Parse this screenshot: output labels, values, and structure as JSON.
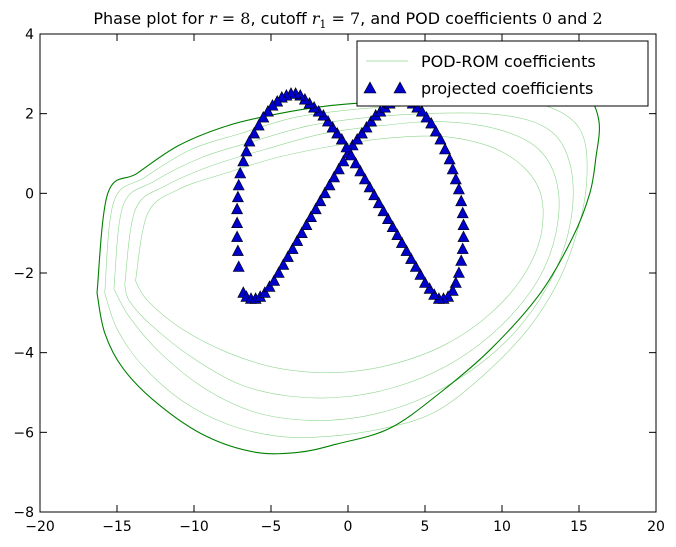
{
  "chart_data": {
    "type": "line",
    "title": {
      "prefix": "Phase plot for ",
      "r_var": "r",
      "r_eq": " = 8",
      "mid": ", cutoff ",
      "r1_var": "r",
      "r1_sub": "1",
      "r1_eq": " = 7",
      "suffix": ", and POD coefficients ",
      "c0": "0",
      "and": " and ",
      "c2": "2"
    },
    "xlabel": "",
    "ylabel": "",
    "xlim": [
      -20,
      20
    ],
    "ylim": [
      -8,
      4
    ],
    "xticks": [
      -20,
      -15,
      -10,
      -5,
      0,
      5,
      10,
      15,
      20
    ],
    "yticks": [
      -8,
      -6,
      -4,
      -2,
      0,
      2,
      4
    ],
    "xtick_labels": [
      "−20",
      "−15",
      "−10",
      "−5",
      "0",
      "5",
      "10",
      "15",
      "20"
    ],
    "ytick_labels": [
      "−8",
      "−6",
      "−4",
      "−2",
      "0",
      "2",
      "4"
    ],
    "grid": false,
    "legend_position": "top-right",
    "series": [
      {
        "name": "POD-ROM coefficients",
        "style": "line",
        "color": "#008000",
        "lightcolor": "#8fd68f",
        "x": [
          -16.3,
          -15.6,
          -13.7,
          -11.0,
          -7.8,
          -4.5,
          -1.2,
          2.0,
          5.2,
          8.5,
          11.5,
          13.9,
          15.5,
          16.3,
          16.1,
          15.7,
          14.6,
          12.5,
          9.3,
          6.0,
          2.7,
          -0.8,
          -3.2,
          -6.0,
          -9.2,
          -12.3,
          -14.6,
          -15.8,
          -16.3
        ],
        "y": [
          -2.5,
          0.0,
          0.5,
          1.2,
          1.7,
          2.0,
          2.2,
          2.3,
          2.4,
          2.5,
          2.6,
          2.7,
          2.5,
          1.8,
          0.9,
          0.0,
          -1.1,
          -2.5,
          -3.9,
          -5.0,
          -5.9,
          -6.3,
          -6.5,
          -6.5,
          -6.1,
          -5.3,
          -4.4,
          -3.5,
          -2.5
        ],
        "inner_loops": [
          {
            "x": [
              -15.8,
              -15.2,
              -13.2,
              -10.2,
              -7.0,
              -3.5,
              0.2,
              4.0,
              8.0,
              11.5,
              14.0,
              15.3,
              15.5,
              15.0,
              13.8,
              11.7,
              8.7,
              5.6,
              2.3,
              -1.2,
              -4.5,
              -7.8,
              -10.8,
              -13.4,
              -15.0,
              -15.8
            ],
            "y": [
              -2.5,
              -0.2,
              0.4,
              1.1,
              1.5,
              1.9,
              2.1,
              2.2,
              2.3,
              2.3,
              2.0,
              1.4,
              0.3,
              -0.8,
              -2.1,
              -3.4,
              -4.6,
              -5.5,
              -5.9,
              -6.1,
              -6.1,
              -5.8,
              -5.2,
              -4.3,
              -3.4,
              -2.5
            ]
          },
          {
            "x": [
              -15.2,
              -14.6,
              -12.6,
              -9.5,
              -6.2,
              -2.5,
              1.2,
              5.0,
              9.0,
              12.0,
              13.8,
              14.6,
              14.3,
              13.0,
              10.8,
              7.8,
              4.5,
              1.0,
              -2.5,
              -6.0,
              -9.3,
              -12.2,
              -14.2,
              -15.2
            ],
            "y": [
              -2.4,
              -0.3,
              0.3,
              0.9,
              1.3,
              1.7,
              1.9,
              2.0,
              2.0,
              1.8,
              1.3,
              0.3,
              -1.0,
              -2.3,
              -3.5,
              -4.5,
              -5.2,
              -5.6,
              -5.7,
              -5.5,
              -4.9,
              -4.0,
              -3.1,
              -2.4
            ]
          },
          {
            "x": [
              -14.5,
              -13.8,
              -11.8,
              -8.8,
              -5.4,
              -1.6,
              2.2,
              6.0,
              9.8,
              12.4,
              13.6,
              13.5,
              12.3,
              10.0,
              7.0,
              3.6,
              0.0,
              -3.6,
              -7.0,
              -10.2,
              -12.8,
              -14.2,
              -14.5
            ],
            "y": [
              -2.3,
              -0.4,
              0.2,
              0.7,
              1.1,
              1.5,
              1.7,
              1.8,
              1.6,
              1.1,
              0.2,
              -1.0,
              -2.2,
              -3.3,
              -4.2,
              -4.8,
              -5.1,
              -5.1,
              -4.8,
              -4.1,
              -3.3,
              -2.7,
              -2.3
            ]
          },
          {
            "x": [
              -13.8,
              -13.0,
              -11.0,
              -8.0,
              -4.6,
              -0.8,
              3.0,
              6.8,
              10.2,
              12.3,
              12.6,
              11.5,
              9.3,
              6.3,
              2.8,
              -0.8,
              -4.4,
              -7.8,
              -10.8,
              -13.0,
              -13.8
            ],
            "y": [
              -2.2,
              -0.5,
              0.1,
              0.5,
              0.9,
              1.2,
              1.4,
              1.4,
              1.0,
              0.2,
              -0.9,
              -2.0,
              -3.0,
              -3.8,
              -4.3,
              -4.5,
              -4.4,
              -4.0,
              -3.4,
              -2.7,
              -2.2
            ]
          }
        ]
      },
      {
        "name": "projected coefficients",
        "style": "marker",
        "marker": "triangle-up",
        "color": "#0000cc",
        "x": [
          -6.8,
          -6.6,
          -6.3,
          -6.0,
          -5.7,
          -5.4,
          -5.1,
          -4.8,
          -4.5,
          -4.2,
          -3.9,
          -3.6,
          -3.3,
          -3.0,
          -2.7,
          -2.4,
          -2.1,
          -1.8,
          -1.5,
          -1.2,
          -0.9,
          -0.6,
          -0.3,
          0.0,
          0.3,
          0.6,
          0.9,
          1.2,
          1.5,
          1.8,
          2.1,
          2.4,
          2.7,
          3.0,
          3.3,
          3.6,
          3.9,
          4.2,
          4.5,
          4.8,
          5.1,
          5.4,
          5.7,
          6.0,
          6.3,
          6.6,
          6.8,
          7.0,
          7.2,
          7.35,
          7.45,
          7.5,
          7.5,
          7.45,
          7.35,
          7.2,
          7.0,
          6.8,
          6.5,
          6.2,
          5.9,
          5.6,
          5.3,
          5.0,
          4.7,
          4.4,
          4.1,
          3.8,
          3.5,
          3.2,
          2.9,
          2.6,
          2.3,
          2.0,
          1.7,
          1.4,
          1.1,
          0.8,
          0.5,
          0.2,
          -0.1,
          -0.4,
          -0.7,
          -1.0,
          -1.3,
          -1.6,
          -1.9,
          -2.2,
          -2.5,
          -2.8,
          -3.1,
          -3.4,
          -3.7,
          -4.0,
          -4.3,
          -4.6,
          -4.9,
          -5.2,
          -5.5,
          -5.8,
          -6.1,
          -6.4,
          -6.6,
          -6.8,
          -7.0,
          -7.1,
          -7.15,
          -7.2,
          -7.2,
          -7.2,
          -7.15,
          -7.1
        ],
        "y": [
          -2.5,
          -2.6,
          -2.65,
          -2.65,
          -2.6,
          -2.5,
          -2.35,
          -2.2,
          -2.0,
          -1.8,
          -1.6,
          -1.4,
          -1.2,
          -1.0,
          -0.8,
          -0.6,
          -0.4,
          -0.2,
          0.0,
          0.2,
          0.4,
          0.6,
          0.8,
          1.0,
          1.2,
          1.35,
          1.5,
          1.65,
          1.8,
          1.95,
          2.05,
          2.15,
          2.25,
          2.3,
          2.35,
          2.35,
          2.3,
          2.25,
          2.15,
          2.05,
          1.9,
          1.75,
          1.55,
          1.35,
          1.1,
          0.85,
          0.6,
          0.35,
          0.1,
          -0.2,
          -0.5,
          -0.8,
          -1.1,
          -1.4,
          -1.7,
          -2.0,
          -2.25,
          -2.45,
          -2.6,
          -2.65,
          -2.65,
          -2.55,
          -2.4,
          -2.25,
          -2.05,
          -1.85,
          -1.65,
          -1.45,
          -1.25,
          -1.05,
          -0.85,
          -0.65,
          -0.45,
          -0.25,
          -0.05,
          0.15,
          0.35,
          0.55,
          0.75,
          0.95,
          1.15,
          1.35,
          1.5,
          1.65,
          1.8,
          1.95,
          2.05,
          2.15,
          2.25,
          2.35,
          2.45,
          2.5,
          2.5,
          2.45,
          2.4,
          2.3,
          2.2,
          2.05,
          1.9,
          1.7,
          1.5,
          1.3,
          1.05,
          0.8,
          0.5,
          0.2,
          -0.1,
          -0.4,
          -0.75,
          -1.1,
          -1.45,
          -1.85
        ]
      }
    ]
  }
}
